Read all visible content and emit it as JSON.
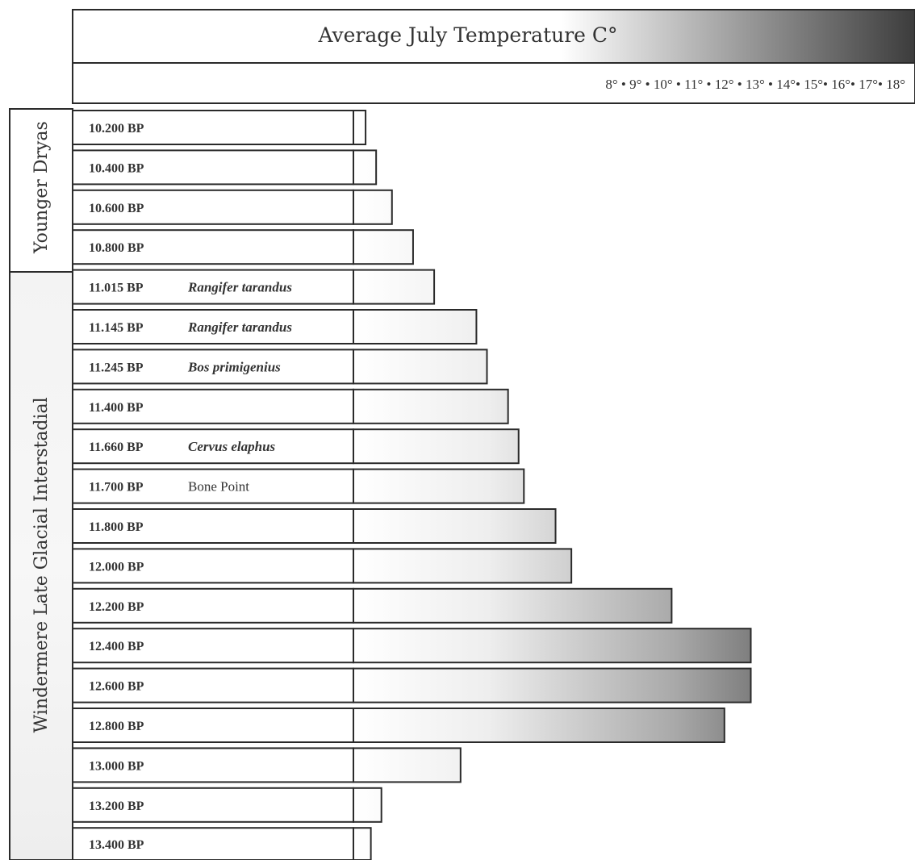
{
  "chart_data": {
    "type": "bar",
    "orientation": "horizontal",
    "title": "Average July Temperature C°",
    "x_tick_label_text": "8° • 9° • 10° • 11° • 12° • 13° • 14°• 15°• 16°• 17°• 18°",
    "xlim": [
      8,
      18
    ],
    "categories": [
      "10.200 BP",
      "10.400 BP",
      "10.600 BP",
      "10.800 BP",
      "11.015 BP",
      "11.145 BP",
      "11.245 BP",
      "11.400 BP",
      "11.660 BP",
      "11.700 BP",
      "11.800 BP",
      "12.000 BP",
      "12.200 BP",
      "12.400 BP",
      "12.600 BP",
      "12.800 BP",
      "13.000 BP",
      "13.200 BP",
      "13.400 BP"
    ],
    "notes": [
      "",
      "",
      "",
      "",
      "Rangifer tarandus",
      "Rangifer tarandus",
      "Bos primigenius",
      "",
      "Cervus elaphus",
      "Bone Point",
      "",
      "",
      "",
      "",
      "",
      "",
      "",
      "",
      ""
    ],
    "values": [
      8.2,
      8.4,
      8.7,
      9.1,
      9.5,
      10.3,
      10.5,
      10.9,
      11.1,
      11.2,
      11.8,
      12.1,
      14.0,
      15.5,
      15.5,
      15.0,
      10.0,
      8.5,
      8.3
    ],
    "periods": [
      {
        "label": "Younger Dryas",
        "rows": [
          0,
          3
        ]
      },
      {
        "label": "Windermere Late Glacial Interstadial",
        "rows": [
          4,
          18
        ]
      }
    ],
    "legend": "none",
    "grid": false
  },
  "colors": {
    "bar_light": "#ffffff",
    "bar_dark": "#3a3a3a",
    "line": "#2a2a2a",
    "header_dark": "#3c3c3c"
  }
}
